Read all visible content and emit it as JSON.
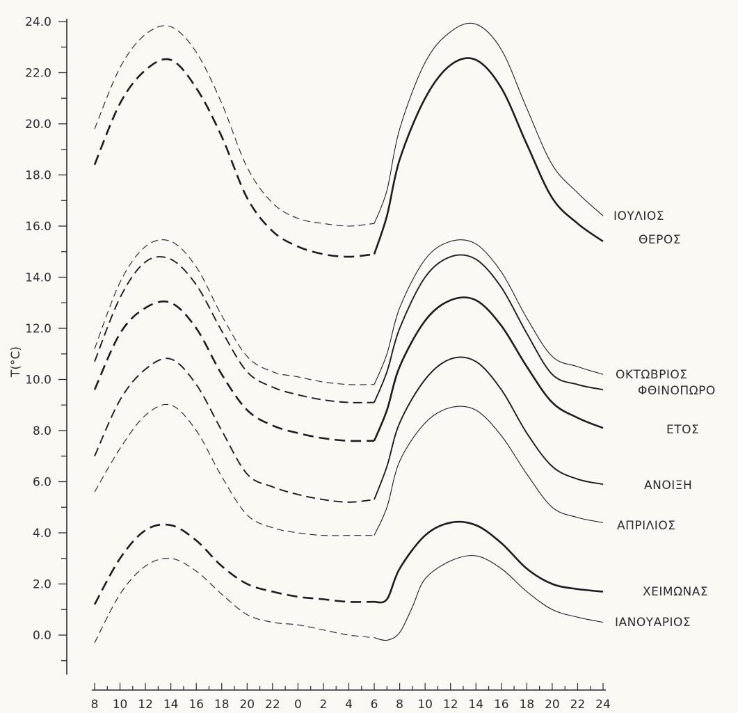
{
  "chart_data": {
    "type": "line",
    "title": "",
    "ylabel": "T(°C)",
    "xlabel": "",
    "ylim": [
      -1.0,
      24.0
    ],
    "grid": false,
    "y_ticks": [
      "0.0",
      "2.0",
      "4.0",
      "6.0",
      "8.0",
      "10.0",
      "12.0",
      "14.0",
      "16.0",
      "18.0",
      "20.0",
      "22.0",
      "24.0"
    ],
    "y_tick_values": [
      0,
      2,
      4,
      6,
      8,
      10,
      12,
      14,
      16,
      18,
      20,
      22,
      24
    ],
    "x_tick_labels": [
      "8",
      "10",
      "12",
      "14",
      "16",
      "18",
      "20",
      "22",
      "0",
      "2",
      "4",
      "6",
      "8",
      "10",
      "12",
      "14",
      "16",
      "18",
      "20",
      "22",
      "24"
    ],
    "x_sequence_hours": [
      8,
      10,
      12,
      14,
      16,
      18,
      20,
      22,
      24,
      26,
      28,
      30,
      32,
      34,
      36,
      38,
      40,
      42,
      44,
      46,
      48
    ],
    "series": [
      {
        "name": "ΙΟΥΛΙΟΣ",
        "style": "thin",
        "x": [
          8,
          10,
          12,
          14,
          16,
          18,
          20,
          22,
          24,
          26,
          28,
          30,
          31,
          32,
          34,
          36,
          38,
          40,
          42,
          44,
          46,
          48
        ],
        "y": [
          19.8,
          22.2,
          23.5,
          23.8,
          22.8,
          20.8,
          18.3,
          16.9,
          16.3,
          16.1,
          16.0,
          16.1,
          17.4,
          19.8,
          22.4,
          23.6,
          23.9,
          22.9,
          20.6,
          18.4,
          17.3,
          16.4
        ]
      },
      {
        "name": "ΘΕΡΟΣ",
        "style": "thick",
        "x": [
          8,
          10,
          12,
          14,
          16,
          18,
          20,
          22,
          24,
          26,
          28,
          30,
          31,
          32,
          34,
          36,
          38,
          40,
          42,
          44,
          46,
          48
        ],
        "y": [
          18.4,
          20.8,
          22.1,
          22.5,
          21.4,
          19.5,
          17.1,
          15.8,
          15.2,
          14.9,
          14.8,
          14.9,
          16.4,
          18.6,
          21.0,
          22.3,
          22.5,
          21.4,
          19.2,
          17.1,
          16.1,
          15.4
        ]
      },
      {
        "name": "ΟΚΤΩΒΡΙΟΣ",
        "style": "thin",
        "x": [
          8,
          10,
          12,
          14,
          16,
          18,
          20,
          22,
          24,
          26,
          28,
          30,
          31,
          32,
          34,
          36,
          38,
          40,
          42,
          44,
          46,
          48
        ],
        "y": [
          11.2,
          13.8,
          15.2,
          15.4,
          14.4,
          12.5,
          10.9,
          10.3,
          10.1,
          9.9,
          9.8,
          9.8,
          11.0,
          12.8,
          14.7,
          15.4,
          15.3,
          14.2,
          12.4,
          10.9,
          10.5,
          10.2
        ]
      },
      {
        "name": "ΦΘΙΝΟΠΩΡΟ",
        "style": "medium",
        "x": [
          8,
          10,
          12,
          14,
          16,
          18,
          20,
          22,
          24,
          26,
          28,
          30,
          31,
          32,
          34,
          36,
          38,
          40,
          42,
          44,
          46,
          48
        ],
        "y": [
          10.7,
          13.2,
          14.6,
          14.7,
          13.7,
          11.9,
          10.3,
          9.7,
          9.4,
          9.2,
          9.1,
          9.1,
          10.3,
          12.0,
          14.0,
          14.8,
          14.7,
          13.6,
          11.8,
          10.2,
          9.8,
          9.6
        ]
      },
      {
        "name": "ΕΤΟΣ",
        "style": "thick",
        "x": [
          8,
          10,
          12,
          14,
          16,
          18,
          20,
          22,
          24,
          26,
          28,
          30,
          31,
          32,
          34,
          36,
          38,
          40,
          42,
          44,
          46,
          48
        ],
        "y": [
          9.6,
          11.8,
          12.8,
          13.0,
          12.0,
          10.2,
          8.8,
          8.2,
          7.9,
          7.7,
          7.6,
          7.6,
          8.8,
          10.5,
          12.3,
          13.1,
          13.1,
          12.1,
          10.5,
          9.1,
          8.5,
          8.1
        ]
      },
      {
        "name": "ΑΝΟΙΞΗ",
        "style": "medium",
        "x": [
          8,
          10,
          12,
          14,
          16,
          18,
          20,
          22,
          24,
          26,
          28,
          30,
          31,
          32,
          34,
          36,
          38,
          40,
          42,
          44,
          46,
          48
        ],
        "y": [
          7.0,
          9.2,
          10.4,
          10.8,
          9.8,
          8.0,
          6.3,
          5.8,
          5.5,
          5.3,
          5.2,
          5.3,
          6.6,
          8.3,
          10.0,
          10.8,
          10.7,
          9.6,
          7.9,
          6.6,
          6.1,
          5.9
        ]
      },
      {
        "name": "ΑΠΡΙΛΙΟΣ",
        "style": "thin",
        "x": [
          8,
          10,
          12,
          14,
          16,
          18,
          20,
          22,
          24,
          26,
          28,
          30,
          31,
          32,
          34,
          36,
          38,
          40,
          42,
          44,
          46,
          48
        ],
        "y": [
          5.6,
          7.3,
          8.6,
          9.0,
          8.0,
          6.2,
          4.7,
          4.2,
          4.0,
          3.9,
          3.9,
          3.9,
          5.0,
          6.8,
          8.3,
          8.9,
          8.8,
          7.8,
          6.3,
          5.0,
          4.6,
          4.4
        ]
      },
      {
        "name": "ΧΕΙΜΩΝΑΣ",
        "style": "thick",
        "x": [
          8,
          10,
          12,
          14,
          16,
          18,
          20,
          22,
          24,
          26,
          28,
          30,
          31,
          32,
          34,
          36,
          38,
          40,
          42,
          44,
          46,
          48
        ],
        "y": [
          1.2,
          3.0,
          4.1,
          4.3,
          3.7,
          2.7,
          2.0,
          1.7,
          1.5,
          1.4,
          1.3,
          1.3,
          1.4,
          2.6,
          3.9,
          4.4,
          4.3,
          3.6,
          2.6,
          2.0,
          1.8,
          1.7
        ]
      },
      {
        "name": "ΙΑΝΟΥΑΡΙΟΣ",
        "style": "thin",
        "x": [
          8,
          10,
          12,
          14,
          16,
          18,
          20,
          22,
          24,
          26,
          28,
          30,
          31,
          32,
          33,
          34,
          36,
          38,
          40,
          42,
          44,
          46,
          48
        ],
        "y": [
          -0.3,
          1.6,
          2.7,
          3.0,
          2.5,
          1.6,
          0.8,
          0.5,
          0.4,
          0.2,
          0.0,
          -0.1,
          -0.2,
          0.1,
          1.1,
          2.2,
          2.9,
          3.1,
          2.6,
          1.7,
          1.0,
          0.7,
          0.5
        ]
      }
    ],
    "dashed_until_x": 30
  }
}
